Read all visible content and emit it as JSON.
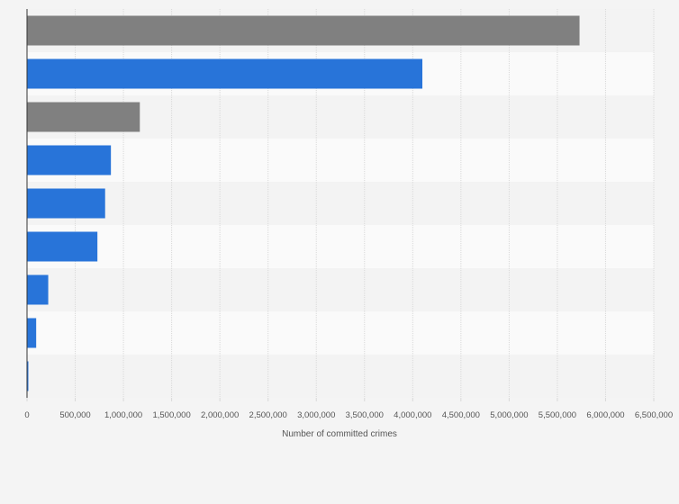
{
  "chart_data": {
    "type": "bar",
    "orientation": "horizontal",
    "title": "",
    "xlabel": "Number of committed crimes",
    "ylabel": "",
    "categories": [
      "",
      "",
      "",
      "",
      "",
      "",
      "",
      "",
      ""
    ],
    "values": [
      5730000,
      4100000,
      1170000,
      870000,
      810000,
      730000,
      220000,
      95000,
      12000
    ],
    "bar_colors": [
      "#808080",
      "#2874d9",
      "#808080",
      "#2874d9",
      "#2874d9",
      "#2874d9",
      "#2874d9",
      "#2874d9",
      "#2874d9"
    ],
    "xlim": [
      0,
      6500000
    ],
    "xticks": [
      0,
      500000,
      1000000,
      1500000,
      2000000,
      2500000,
      3000000,
      3500000,
      4000000,
      4500000,
      5000000,
      5500000,
      6000000,
      6500000
    ],
    "xtick_labels": [
      "0",
      "500,000",
      "1,000,000",
      "1,500,000",
      "2,000,000",
      "2,500,000",
      "3,000,000",
      "3,500,000",
      "4,000,000",
      "4,500,000",
      "5,000,000",
      "5,500,000",
      "6,000,000",
      "6,500,000"
    ],
    "grid": true,
    "legend": "none",
    "colors": {
      "background": "#f4f4f4",
      "band_light": "#fafafa",
      "band_dark": "#f3f3f3",
      "gridline": "#d9d9d9",
      "axis": "#333333"
    }
  }
}
